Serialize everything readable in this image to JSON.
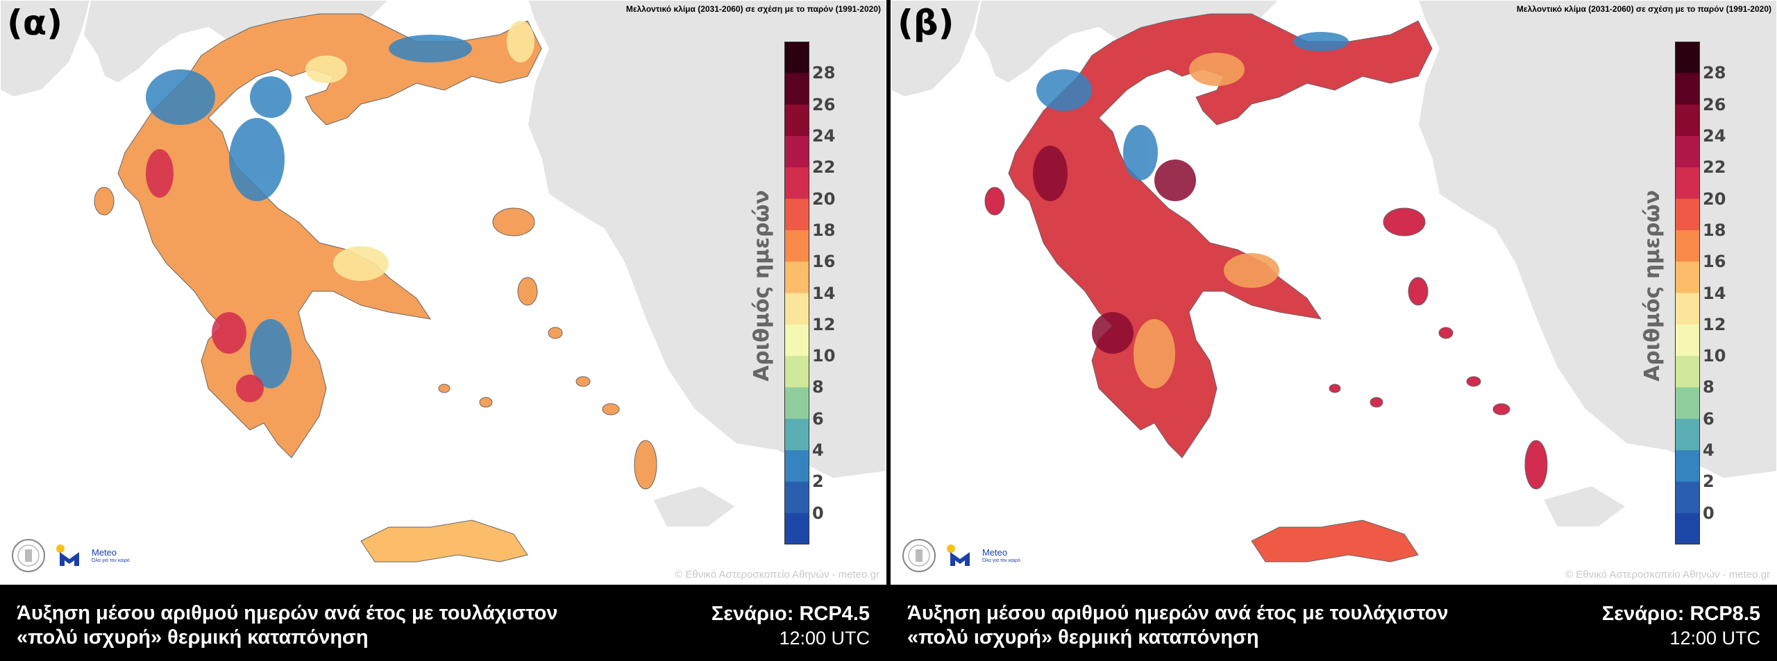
{
  "panels": [
    {
      "label": "(α)",
      "subtitle": "Μελλοντικό κλίμα (2031-2060) σε σχέση με το παρόν (1991-2020)",
      "copyright": "© Εθνικό Αστεροσκοπείο Αθηνών - meteo.gr",
      "caption_title": "Άυξηση μέσου αριθμού ημερών ανά έτος με τουλάχιστον «πολύ ισχυρή» θερμική καταπόνηση",
      "scenario": "Σενάριο: RCP4.5",
      "time": "12:00 UTC",
      "dominant_color": "#f4a05a"
    },
    {
      "label": "(β)",
      "subtitle": "Μελλοντικό κλίμα (2031-2060) σε σχέση με το παρόν (1991-2020)",
      "copyright": "© Εθνικό Αστεροσκοπείο Αθηνών - meteo.gr",
      "caption_title": "Άυξηση μέσου αριθμού ημερών ανά έτος με τουλάχιστον «πολύ ισχυρή» θερμική καταπόνηση",
      "scenario": "Σενάριο: RCP8.5",
      "time": "12:00 UTC",
      "dominant_color": "#d8404a"
    }
  ],
  "legend": {
    "title": "Αριθμός ημερών",
    "ticks": [
      "28",
      "26",
      "24",
      "22",
      "20",
      "18",
      "16",
      "14",
      "12",
      "10",
      "8",
      "6",
      "4",
      "2",
      "0"
    ],
    "colors": [
      "#2a0010",
      "#5a0020",
      "#8a0a30",
      "#b0184a",
      "#d22c4e",
      "#ee5a45",
      "#f88a4a",
      "#fbbd6a",
      "#fbe59a",
      "#f4f8b2",
      "#cfe89a",
      "#8fce9c",
      "#5aaeb4",
      "#3584c0",
      "#2a5fb0",
      "#1e48a8"
    ]
  },
  "logos": {
    "seal_icon": "noa-seal-icon",
    "meteo_name": "Meteo",
    "meteo_tag": "Όλα για τον καιρό"
  }
}
